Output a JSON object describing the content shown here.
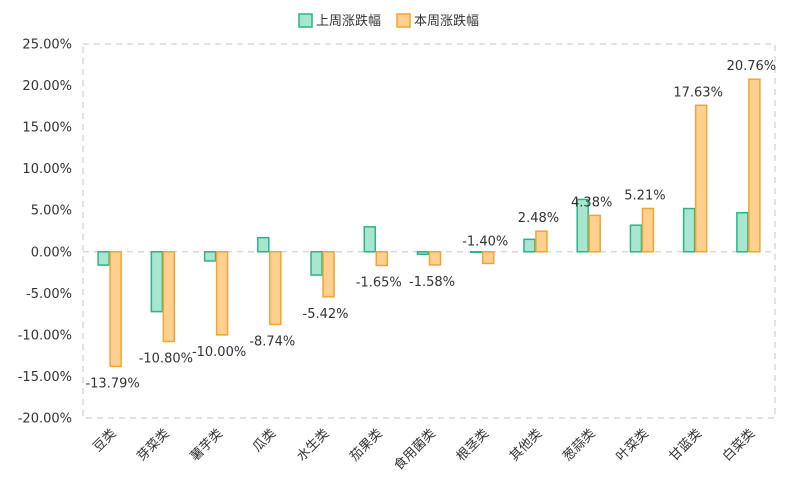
{
  "chart_data": {
    "type": "bar",
    "title": "",
    "xlabel": "",
    "ylabel": "",
    "categories": [
      "豆类",
      "芽菜类",
      "薯芋类",
      "瓜类",
      "水生类",
      "茄果类",
      "食用菌类",
      "根茎类",
      "其他类",
      "葱蒜类",
      "叶菜类",
      "甘蓝类",
      "白菜类"
    ],
    "series": [
      {
        "name": "上周涨跌幅",
        "values": [
          -1.6,
          -7.2,
          -1.1,
          1.7,
          -2.8,
          3.0,
          -0.3,
          0.0,
          1.5,
          6.3,
          3.2,
          5.2,
          4.7
        ],
        "fill": "#a8e6cf",
        "stroke": "#2db38a"
      },
      {
        "name": "本周涨跌幅",
        "values": [
          -13.79,
          -10.8,
          -10.0,
          -8.74,
          -5.42,
          -1.65,
          -1.58,
          -1.4,
          2.48,
          4.38,
          5.21,
          17.63,
          20.76
        ],
        "labels": [
          "-13.79%",
          "-10.80%",
          "-10.00%",
          "-8.74%",
          "-5.42%",
          "-1.65%",
          "-1.58%",
          "-1.40%",
          "2.48%",
          "4.38%",
          "5.21%",
          "17.63%",
          "20.76%"
        ],
        "fill": "#ffd08f",
        "stroke": "#f2a531"
      }
    ],
    "ylim": [
      -20,
      25
    ],
    "yticks": [
      "25.00%",
      "20.00%",
      "15.00%",
      "10.00%",
      "5.00%",
      "0.00%",
      "-5.00%",
      "-10.00%",
      "-15.00%",
      "-20.00%"
    ],
    "grid": false,
    "legend_position": "top-center"
  }
}
